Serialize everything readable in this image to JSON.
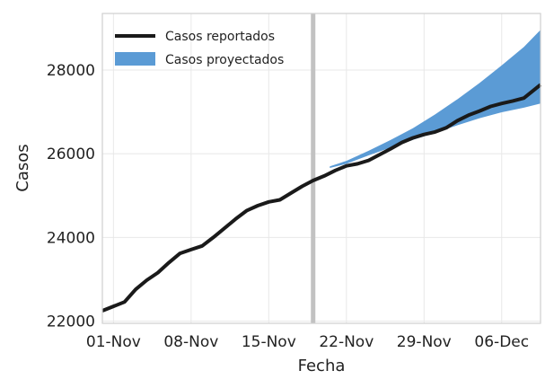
{
  "chart_data": {
    "type": "line",
    "xlabel": "Fecha",
    "ylabel": "Casos",
    "x_ticks": [
      "01-Nov",
      "08-Nov",
      "15-Nov",
      "22-Nov",
      "29-Nov",
      "06-Dec"
    ],
    "x_tick_days": [
      0,
      7,
      14,
      21,
      28,
      35
    ],
    "x_range_days": [
      -1,
      38.5
    ],
    "y_ticks": [
      22000,
      24000,
      26000,
      28000
    ],
    "ylim": [
      21950,
      29350
    ],
    "grid": true,
    "legend_position": "top-left",
    "divider_day": 18,
    "series": [
      {
        "name": "Casos reportados",
        "color": "#1a1a1a",
        "days": [
          -1,
          1,
          2,
          3,
          4,
          5,
          6,
          7,
          8,
          9,
          10,
          11,
          12,
          13,
          14,
          15,
          16,
          17,
          18,
          19,
          20,
          21,
          22,
          23,
          24,
          25,
          26,
          27,
          28,
          29,
          30,
          31,
          32,
          33,
          34,
          35,
          36,
          37,
          38.5
        ],
        "values": [
          22250,
          22460,
          22760,
          22980,
          23160,
          23400,
          23620,
          23710,
          23800,
          24000,
          24220,
          24440,
          24640,
          24760,
          24850,
          24900,
          25060,
          25220,
          25360,
          25470,
          25600,
          25710,
          25760,
          25840,
          25980,
          26120,
          26270,
          26380,
          26460,
          26520,
          26620,
          26790,
          26920,
          27020,
          27130,
          27200,
          27260,
          27330,
          27650
        ]
      },
      {
        "name": "Casos proyectados",
        "color": "#5b9bd5",
        "days": [
          19.5,
          21,
          23,
          25,
          27,
          29,
          31,
          33,
          35,
          37,
          38.5
        ],
        "lower": [
          25660,
          25760,
          25960,
          26150,
          26330,
          26500,
          26680,
          26850,
          26990,
          27100,
          27200
        ],
        "upper": [
          25700,
          25830,
          26070,
          26330,
          26610,
          26940,
          27300,
          27690,
          28110,
          28550,
          28960
        ]
      }
    ]
  }
}
